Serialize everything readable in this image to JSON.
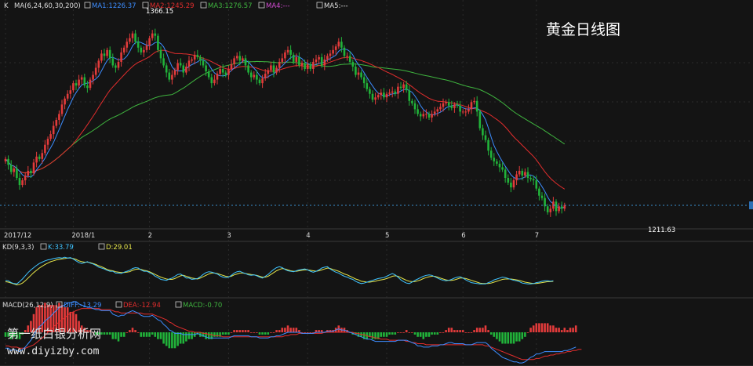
{
  "title": "黄金日线图",
  "watermark": {
    "line1": "第一纸白银分析网",
    "line2": "www.diyizby.com"
  },
  "colors": {
    "bg": "#141414",
    "grid": "#2c2c2c",
    "up": "#e23b3b",
    "down": "#21b33a",
    "ma1": "#3c8dff",
    "ma2": "#e22d2d",
    "ma3": "#3fb53f",
    "ma4": "#d24bd2",
    "ma5": "#e0e0e0",
    "kline": "#3fc3ff",
    "dline": "#e5e54a"
  },
  "main_panel": {
    "label": "K",
    "indicator": "MA(6,24,60,30,200)",
    "ma_legend": [
      {
        "key": "ma1",
        "text": "MA1:1226.37"
      },
      {
        "key": "ma2",
        "text": "MA2:1245.29"
      },
      {
        "key": "ma3",
        "text": "MA3:1276.57"
      },
      {
        "key": "ma4",
        "text": "MA4:---"
      },
      {
        "key": "ma5",
        "text": "MA5:---"
      }
    ],
    "high_label": "1366.15",
    "low_label": "1211.63"
  },
  "kd_panel": {
    "label": "KD(9,3,3)",
    "legend": [
      {
        "key": "kline",
        "text": "K:33.79"
      },
      {
        "key": "dline",
        "text": "D:29.01"
      }
    ]
  },
  "macd_panel": {
    "label": "MACD(26,12,9)",
    "legend": [
      {
        "key": "ma1",
        "text": "DIFF:-13.29"
      },
      {
        "key": "ma2",
        "text": "DEA:-12.94"
      },
      {
        "key": "ma3",
        "text": "MACD:-0.70"
      }
    ]
  },
  "chart_data": {
    "type": "candlestick",
    "x_labels": [
      "2017/12",
      "2018/1",
      "2",
      "3",
      "4",
      "5",
      "6",
      "7"
    ],
    "x_label_index": [
      0,
      24,
      51,
      79,
      107,
      135,
      162,
      188
    ],
    "ylim": [
      1195,
      1375
    ],
    "close": [
      1254,
      1249,
      1243,
      1246,
      1238,
      1232,
      1236,
      1240,
      1244,
      1242,
      1251,
      1256,
      1254,
      1259,
      1266,
      1271,
      1275,
      1282,
      1287,
      1292,
      1300,
      1305,
      1309,
      1312,
      1318,
      1316,
      1321,
      1323,
      1316,
      1314,
      1321,
      1325,
      1331,
      1337,
      1343,
      1341,
      1346,
      1339,
      1333,
      1331,
      1336,
      1344,
      1348,
      1353,
      1356,
      1360,
      1353,
      1348,
      1344,
      1346,
      1350,
      1356,
      1360,
      1358,
      1346,
      1339,
      1333,
      1327,
      1321,
      1325,
      1329,
      1335,
      1333,
      1327,
      1332,
      1337,
      1338,
      1342,
      1340,
      1337,
      1333,
      1328,
      1323,
      1318,
      1321,
      1326,
      1330,
      1327,
      1325,
      1330,
      1334,
      1339,
      1341,
      1337,
      1339,
      1333,
      1327,
      1323,
      1325,
      1321,
      1318,
      1322,
      1326,
      1329,
      1333,
      1327,
      1331,
      1336,
      1339,
      1344,
      1346,
      1342,
      1336,
      1340,
      1333,
      1335,
      1330,
      1334,
      1330,
      1336,
      1338,
      1340,
      1333,
      1338,
      1341,
      1343,
      1346,
      1349,
      1353,
      1348,
      1341,
      1341,
      1336,
      1332,
      1325,
      1327,
      1323,
      1318,
      1313,
      1309,
      1304,
      1306,
      1308,
      1310,
      1306,
      1309,
      1310,
      1311,
      1309,
      1315,
      1314,
      1317,
      1312,
      1303,
      1301,
      1296,
      1292,
      1290,
      1292,
      1292,
      1289,
      1292,
      1294,
      1296,
      1298,
      1301,
      1302,
      1299,
      1297,
      1300,
      1299,
      1294,
      1294,
      1294,
      1296,
      1302,
      1303,
      1294,
      1280,
      1274,
      1270,
      1261,
      1255,
      1252,
      1250,
      1247,
      1245,
      1238,
      1234,
      1230,
      1236,
      1241,
      1244,
      1240,
      1243,
      1238,
      1237,
      1236,
      1229,
      1223,
      1221,
      1214,
      1209,
      1212,
      1218,
      1210,
      1214,
      1212,
      1215
    ],
    "kd_k": [
      35,
      34,
      30,
      28,
      27,
      32,
      38,
      45,
      52,
      58,
      63,
      68,
      72,
      75,
      78,
      80,
      81,
      83,
      84,
      85,
      84,
      86,
      84,
      85,
      82,
      78,
      74,
      72,
      74,
      76,
      73,
      71,
      68,
      64,
      62,
      60,
      57,
      55,
      55,
      51,
      51,
      50,
      53,
      55,
      57,
      61,
      63,
      62,
      58,
      55,
      55,
      52,
      49,
      44,
      41,
      37,
      36,
      35,
      38,
      40,
      44,
      48,
      49,
      45,
      40,
      40,
      37,
      38,
      39,
      43,
      48,
      52,
      54,
      53,
      51,
      49,
      45,
      42,
      41,
      42,
      46,
      51,
      54,
      55,
      52,
      50,
      47,
      46,
      47,
      45,
      42,
      40,
      44,
      48,
      54,
      59,
      63,
      65,
      63,
      59,
      56,
      55,
      54,
      56,
      58,
      59,
      60,
      58,
      55,
      53,
      55,
      58,
      62,
      64,
      65,
      60,
      56,
      53,
      51,
      47,
      44,
      42,
      39,
      37,
      33,
      30,
      28,
      29,
      31,
      33,
      35,
      37,
      39,
      40,
      41,
      44,
      47,
      50,
      47,
      42,
      36,
      32,
      29,
      28,
      31,
      35,
      38,
      41,
      44,
      46,
      47,
      46,
      43,
      40,
      37,
      35,
      34,
      35,
      37,
      40,
      42,
      43,
      40,
      36,
      33,
      30,
      29,
      28,
      27,
      27,
      27,
      30,
      32,
      36,
      38,
      40,
      42,
      41,
      39,
      37,
      35,
      34,
      32,
      29,
      28,
      27,
      27,
      28,
      30,
      31,
      33,
      34,
      34,
      33,
      34
    ],
    "kd_d": [
      32,
      31,
      29,
      27,
      25,
      26,
      29,
      34,
      40,
      46,
      52,
      57,
      62,
      66,
      70,
      73,
      76,
      78,
      80,
      81,
      82,
      83,
      84,
      84,
      83,
      81,
      78,
      76,
      75,
      75,
      74,
      72,
      70,
      67,
      65,
      62,
      59,
      57,
      56,
      54,
      53,
      52,
      52,
      53,
      54,
      57,
      59,
      60,
      59,
      57,
      56,
      54,
      51,
      48,
      45,
      42,
      40,
      38,
      37,
      37,
      39,
      42,
      45,
      46,
      44,
      42,
      40,
      39,
      38,
      40,
      43,
      46,
      49,
      51,
      51,
      50,
      48,
      46,
      44,
      43,
      44,
      47,
      49,
      51,
      51,
      50,
      49,
      48,
      47,
      46,
      44,
      42,
      42,
      44,
      48,
      52,
      56,
      59,
      61,
      60,
      58,
      56,
      55,
      55,
      56,
      57,
      58,
      58,
      57,
      56,
      55,
      56,
      58,
      60,
      62,
      61,
      59,
      57,
      55,
      52,
      49,
      47,
      44,
      41,
      38,
      36,
      33,
      32,
      31,
      31,
      32,
      33,
      35,
      36,
      37,
      39,
      41,
      44,
      45,
      44,
      41,
      38,
      35,
      33,
      32,
      32,
      34,
      36,
      39,
      41,
      43,
      44,
      44,
      42,
      40,
      38,
      36,
      35,
      35,
      36,
      38,
      40,
      40,
      39,
      37,
      35,
      33,
      31,
      29,
      28,
      28,
      28,
      29,
      31,
      33,
      35,
      37,
      38,
      38,
      38,
      37,
      36,
      35,
      33,
      31,
      30,
      29,
      28,
      28,
      29,
      30,
      31,
      32,
      32,
      33
    ],
    "macd_diff": [
      -14,
      -14,
      -16,
      -15,
      -16,
      -17,
      -15,
      -13,
      -10,
      -7,
      -3,
      2,
      5,
      7,
      10,
      12,
      14,
      17,
      19,
      22,
      23,
      24,
      26,
      26,
      27,
      27,
      25,
      24,
      23,
      22,
      22,
      21,
      20,
      20,
      19,
      19,
      19,
      19,
      16,
      15,
      14,
      15,
      15,
      17,
      18,
      19,
      18,
      17,
      15,
      14,
      14,
      14,
      15,
      13,
      11,
      10,
      7,
      5,
      2,
      1,
      -1,
      -1,
      -1,
      -2,
      -2,
      -2,
      -2,
      -2,
      -1,
      -2,
      -3,
      -4,
      -5,
      -5,
      -5,
      -5,
      -5,
      -5,
      -5,
      -5,
      -4,
      -3,
      -3,
      -3,
      -3,
      -3,
      -3,
      -4,
      -4,
      -4,
      -5,
      -5,
      -5,
      -5,
      -4,
      -4,
      -3,
      -3,
      -2,
      -1,
      0,
      0,
      0,
      0,
      0,
      -1,
      -1,
      -1,
      -1,
      -1,
      0,
      0,
      0,
      0,
      1,
      1,
      1,
      2,
      3,
      2,
      2,
      1,
      0,
      -1,
      -2,
      -3,
      -4,
      -5,
      -6,
      -6,
      -7,
      -8,
      -8,
      -8,
      -8,
      -8,
      -8,
      -8,
      -8,
      -7,
      -7,
      -7,
      -7,
      -8,
      -9,
      -10,
      -12,
      -12,
      -13,
      -13,
      -13,
      -12,
      -12,
      -12,
      -11,
      -11,
      -10,
      -9,
      -9,
      -10,
      -10,
      -10,
      -10,
      -11,
      -11,
      -11,
      -10,
      -9,
      -9,
      -9,
      -9,
      -11,
      -14,
      -16,
      -18,
      -20,
      -22,
      -23,
      -24,
      -25,
      -26,
      -26,
      -27,
      -27,
      -26,
      -24,
      -22,
      -21,
      -19,
      -19,
      -18,
      -17,
      -17,
      -17,
      -17,
      -17,
      -17,
      -17,
      -16,
      -16,
      -15,
      -14,
      -13
    ],
    "macd_dea": [
      -12,
      -12,
      -13,
      -13,
      -13,
      -14,
      -14,
      -14,
      -13,
      -12,
      -11,
      -9,
      -7,
      -5,
      -3,
      0,
      2,
      5,
      7,
      9,
      11,
      13,
      15,
      17,
      18,
      19,
      20,
      21,
      21,
      21,
      21,
      21,
      21,
      21,
      20,
      20,
      20,
      20,
      19,
      18,
      18,
      17,
      17,
      17,
      17,
      17,
      17,
      17,
      17,
      16,
      16,
      16,
      16,
      15,
      14,
      13,
      12,
      11,
      9,
      8,
      6,
      5,
      4,
      3,
      2,
      1,
      1,
      0,
      0,
      0,
      -1,
      -1,
      -2,
      -2,
      -3,
      -3,
      -3,
      -4,
      -4,
      -4,
      -4,
      -4,
      -4,
      -4,
      -4,
      -4,
      -4,
      -4,
      -4,
      -4,
      -4,
      -4,
      -4,
      -4,
      -4,
      -4,
      -4,
      -4,
      -4,
      -3,
      -3,
      -2,
      -2,
      -2,
      -1,
      -1,
      -1,
      -1,
      -1,
      -1,
      -1,
      -1,
      -1,
      0,
      0,
      0,
      0,
      0,
      0,
      0,
      0,
      0,
      0,
      0,
      -1,
      -1,
      -2,
      -2,
      -3,
      -4,
      -4,
      -5,
      -5,
      -6,
      -6,
      -6,
      -7,
      -7,
      -7,
      -7,
      -7,
      -7,
      -8,
      -8,
      -9,
      -9,
      -10,
      -10,
      -10,
      -11,
      -11,
      -11,
      -11,
      -11,
      -11,
      -11,
      -11,
      -11,
      -11,
      -11,
      -11,
      -11,
      -11,
      -11,
      -11,
      -11,
      -11,
      -11,
      -11,
      -11,
      -12,
      -12,
      -13,
      -14,
      -15,
      -16,
      -17,
      -18,
      -19,
      -20,
      -21,
      -22,
      -23,
      -24,
      -24,
      -24,
      -24,
      -24,
      -23,
      -23,
      -22,
      -21,
      -21,
      -20,
      -20,
      -19,
      -19,
      -18,
      -18,
      -17,
      -17,
      -16,
      -16,
      -15,
      -15
    ]
  }
}
